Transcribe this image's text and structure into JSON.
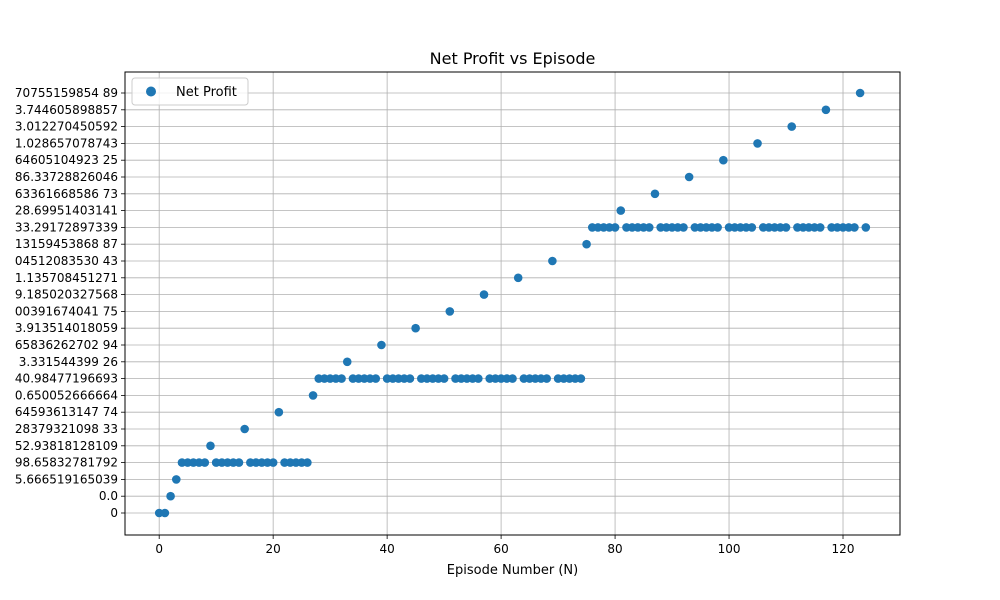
{
  "chart_data": {
    "type": "scatter",
    "title": "Net Profit vs Episode",
    "xlabel": "Episode Number (N)",
    "ylabel": "",
    "xlim": [
      -6,
      130
    ],
    "xticks": [
      0,
      20,
      40,
      60,
      80,
      100,
      120
    ],
    "grid": true,
    "legend_position": "top-left",
    "series_color": "#1f77b4",
    "y_categories": [
      "0",
      "0.0",
      "5.666519165039",
      "98.65832781792",
      "52.93818128109",
      "28379321098 33",
      "64593613147 74",
      "0.650052666664",
      "40.98477196693",
      "3.331544399 26",
      "65836262702 94",
      "3.913514018059",
      "00391674041 75",
      "9.185020327568",
      "1.135708451271",
      "04512083530 43",
      "13159453868 87",
      "33.29172897339",
      "28.69951403141",
      "63361668586 73",
      "86.33728826046",
      "64605104923 25",
      "1.028657078743",
      "3.012270450592",
      "3.744605898857",
      "70755159854 89"
    ],
    "series": [
      {
        "name": "Net Profit",
        "points": [
          [
            0,
            "0"
          ],
          [
            1,
            "0"
          ],
          [
            2,
            "0.0"
          ],
          [
            3,
            "5.666519165039"
          ],
          [
            4,
            "98.65832781792"
          ],
          [
            5,
            "98.65832781792"
          ],
          [
            6,
            "98.65832781792"
          ],
          [
            7,
            "98.65832781792"
          ],
          [
            8,
            "98.65832781792"
          ],
          [
            9,
            "52.93818128109"
          ],
          [
            10,
            "98.65832781792"
          ],
          [
            11,
            "98.65832781792"
          ],
          [
            12,
            "98.65832781792"
          ],
          [
            13,
            "98.65832781792"
          ],
          [
            14,
            "98.65832781792"
          ],
          [
            15,
            "28379321098 33"
          ],
          [
            16,
            "98.65832781792"
          ],
          [
            17,
            "98.65832781792"
          ],
          [
            18,
            "98.65832781792"
          ],
          [
            19,
            "98.65832781792"
          ],
          [
            20,
            "98.65832781792"
          ],
          [
            21,
            "64593613147 74"
          ],
          [
            22,
            "98.65832781792"
          ],
          [
            23,
            "98.65832781792"
          ],
          [
            24,
            "98.65832781792"
          ],
          [
            25,
            "98.65832781792"
          ],
          [
            26,
            "98.65832781792"
          ],
          [
            27,
            "0.650052666664"
          ],
          [
            28,
            "40.98477196693"
          ],
          [
            29,
            "40.98477196693"
          ],
          [
            30,
            "40.98477196693"
          ],
          [
            31,
            "40.98477196693"
          ],
          [
            32,
            "40.98477196693"
          ],
          [
            33,
            "3.331544399 26"
          ],
          [
            34,
            "40.98477196693"
          ],
          [
            35,
            "40.98477196693"
          ],
          [
            36,
            "40.98477196693"
          ],
          [
            37,
            "40.98477196693"
          ],
          [
            38,
            "40.98477196693"
          ],
          [
            39,
            "65836262702 94"
          ],
          [
            40,
            "40.98477196693"
          ],
          [
            41,
            "40.98477196693"
          ],
          [
            42,
            "40.98477196693"
          ],
          [
            43,
            "40.98477196693"
          ],
          [
            44,
            "40.98477196693"
          ],
          [
            45,
            "3.913514018059"
          ],
          [
            46,
            "40.98477196693"
          ],
          [
            47,
            "40.98477196693"
          ],
          [
            48,
            "40.98477196693"
          ],
          [
            49,
            "40.98477196693"
          ],
          [
            50,
            "40.98477196693"
          ],
          [
            51,
            "00391674041 75"
          ],
          [
            52,
            "40.98477196693"
          ],
          [
            53,
            "40.98477196693"
          ],
          [
            54,
            "40.98477196693"
          ],
          [
            55,
            "40.98477196693"
          ],
          [
            56,
            "40.98477196693"
          ],
          [
            57,
            "9.185020327568"
          ],
          [
            58,
            "40.98477196693"
          ],
          [
            59,
            "40.98477196693"
          ],
          [
            60,
            "40.98477196693"
          ],
          [
            61,
            "40.98477196693"
          ],
          [
            62,
            "40.98477196693"
          ],
          [
            63,
            "1.135708451271"
          ],
          [
            64,
            "40.98477196693"
          ],
          [
            65,
            "40.98477196693"
          ],
          [
            66,
            "40.98477196693"
          ],
          [
            67,
            "40.98477196693"
          ],
          [
            68,
            "40.98477196693"
          ],
          [
            69,
            "04512083530 43"
          ],
          [
            70,
            "40.98477196693"
          ],
          [
            71,
            "40.98477196693"
          ],
          [
            72,
            "40.98477196693"
          ],
          [
            73,
            "40.98477196693"
          ],
          [
            74,
            "40.98477196693"
          ],
          [
            75,
            "13159453868 87"
          ],
          [
            76,
            "33.29172897339"
          ],
          [
            77,
            "33.29172897339"
          ],
          [
            78,
            "33.29172897339"
          ],
          [
            79,
            "33.29172897339"
          ],
          [
            80,
            "33.29172897339"
          ],
          [
            81,
            "28.69951403141"
          ],
          [
            82,
            "33.29172897339"
          ],
          [
            83,
            "33.29172897339"
          ],
          [
            84,
            "33.29172897339"
          ],
          [
            85,
            "33.29172897339"
          ],
          [
            86,
            "33.29172897339"
          ],
          [
            87,
            "63361668586 73"
          ],
          [
            88,
            "33.29172897339"
          ],
          [
            89,
            "33.29172897339"
          ],
          [
            90,
            "33.29172897339"
          ],
          [
            91,
            "33.29172897339"
          ],
          [
            92,
            "33.29172897339"
          ],
          [
            93,
            "86.33728826046"
          ],
          [
            94,
            "33.29172897339"
          ],
          [
            95,
            "33.29172897339"
          ],
          [
            96,
            "33.29172897339"
          ],
          [
            97,
            "33.29172897339"
          ],
          [
            98,
            "33.29172897339"
          ],
          [
            99,
            "64605104923 25"
          ],
          [
            100,
            "33.29172897339"
          ],
          [
            101,
            "33.29172897339"
          ],
          [
            102,
            "33.29172897339"
          ],
          [
            103,
            "33.29172897339"
          ],
          [
            104,
            "33.29172897339"
          ],
          [
            105,
            "1.028657078743"
          ],
          [
            106,
            "33.29172897339"
          ],
          [
            107,
            "33.29172897339"
          ],
          [
            108,
            "33.29172897339"
          ],
          [
            109,
            "33.29172897339"
          ],
          [
            110,
            "33.29172897339"
          ],
          [
            111,
            "3.012270450592"
          ],
          [
            112,
            "33.29172897339"
          ],
          [
            113,
            "33.29172897339"
          ],
          [
            114,
            "33.29172897339"
          ],
          [
            115,
            "33.29172897339"
          ],
          [
            116,
            "33.29172897339"
          ],
          [
            117,
            "3.744605898857"
          ],
          [
            118,
            "33.29172897339"
          ],
          [
            119,
            "33.29172897339"
          ],
          [
            120,
            "33.29172897339"
          ],
          [
            121,
            "33.29172897339"
          ],
          [
            122,
            "33.29172897339"
          ],
          [
            123,
            "70755159854 89"
          ],
          [
            124,
            "33.29172897339"
          ]
        ]
      }
    ]
  }
}
